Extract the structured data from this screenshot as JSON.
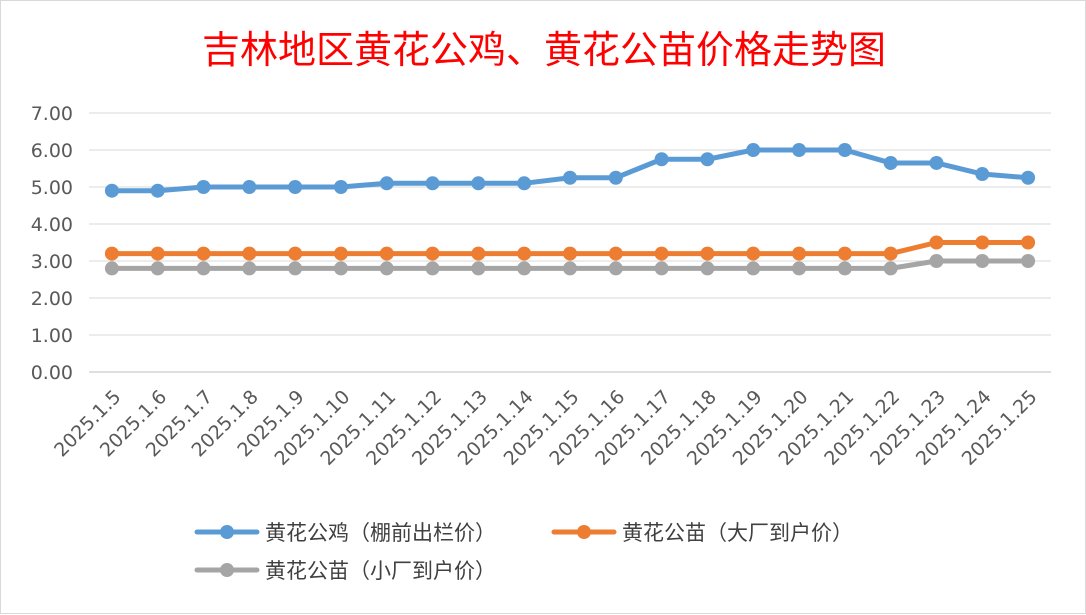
{
  "chart_data": {
    "type": "line",
    "title": "吉林地区黄花公鸡、黄花公苗价格走势图",
    "categories": [
      "2025.1.5",
      "2025.1.6",
      "2025.1.7",
      "2025.1.8",
      "2025.1.9",
      "2025.1.10",
      "2025.1.11",
      "2025.1.12",
      "2025.1.13",
      "2025.1.14",
      "2025.1.15",
      "2025.1.16",
      "2025.1.17",
      "2025.1.18",
      "2025.1.19",
      "2025.1.20",
      "2025.1.21",
      "2025.1.22",
      "2025.1.23",
      "2025.1.24",
      "2025.1.25"
    ],
    "y_ticks": [
      "0.00",
      "1.00",
      "2.00",
      "3.00",
      "4.00",
      "5.00",
      "6.00",
      "7.00"
    ],
    "ylim": [
      0,
      7
    ],
    "grid": true,
    "legend_position": "bottom",
    "series": [
      {
        "name": "黄花公鸡（棚前出栏价）",
        "color": "#5b9bd5",
        "values": [
          4.9,
          4.9,
          5.0,
          5.0,
          5.0,
          5.0,
          5.1,
          5.1,
          5.1,
          5.1,
          5.25,
          5.25,
          5.75,
          5.75,
          6.0,
          6.0,
          6.0,
          5.65,
          5.65,
          5.35,
          5.25
        ]
      },
      {
        "name": "黄花公苗（大厂到户价）",
        "color": "#ed7d31",
        "values": [
          3.2,
          3.2,
          3.2,
          3.2,
          3.2,
          3.2,
          3.2,
          3.2,
          3.2,
          3.2,
          3.2,
          3.2,
          3.2,
          3.2,
          3.2,
          3.2,
          3.2,
          3.2,
          3.5,
          3.5,
          3.5
        ]
      },
      {
        "name": "黄花公苗（小厂到户价）",
        "color": "#a5a5a5",
        "values": [
          2.8,
          2.8,
          2.8,
          2.8,
          2.8,
          2.8,
          2.8,
          2.8,
          2.8,
          2.8,
          2.8,
          2.8,
          2.8,
          2.8,
          2.8,
          2.8,
          2.8,
          2.8,
          3.0,
          3.0,
          3.0
        ]
      }
    ]
  }
}
